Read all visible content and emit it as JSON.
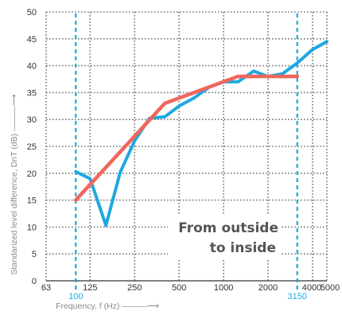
{
  "colors": {
    "series_blue": "#1ea8e0",
    "series_red": "#f0675e",
    "grid": "#777777",
    "marker_lines": "#1ea8e0",
    "marker_labels": "#1ea8e0",
    "annotation_text": "#555555"
  },
  "chart_data": {
    "type": "line",
    "x_scale": "log",
    "xlabel": "Frequency, f (Hz) ———⟶",
    "ylabel": "Standarized level difference, DnT (dB) ———⟶",
    "xlim": [
      63,
      5000
    ],
    "ylim": [
      0,
      50
    ],
    "x_ticks": [
      63,
      125,
      250,
      500,
      1000,
      2000,
      4000,
      5000
    ],
    "x_tick_labels": [
      "63",
      "125",
      "250",
      "500",
      "1000",
      "2000",
      "4000",
      "5000"
    ],
    "y_ticks": [
      0,
      5,
      10,
      15,
      20,
      25,
      30,
      35,
      40,
      45,
      50
    ],
    "y_tick_labels": [
      "0",
      "5",
      "10",
      "15",
      "20",
      "25",
      "30",
      "35",
      "40",
      "45",
      "50"
    ],
    "grid": true,
    "marker_lines": [
      {
        "x": 100,
        "label": "100"
      },
      {
        "x": 3150,
        "label": "3150"
      }
    ],
    "annotation": [
      "From outside",
      "to inside"
    ],
    "series": [
      {
        "color": "#1ea8e0",
        "points": [
          [
            100,
            20.3
          ],
          [
            125,
            19.0
          ],
          [
            160,
            10.3
          ],
          [
            200,
            20.2
          ],
          [
            250,
            26.0
          ],
          [
            315,
            30.2
          ],
          [
            400,
            30.5
          ],
          [
            500,
            32.5
          ],
          [
            630,
            34.0
          ],
          [
            800,
            36.0
          ],
          [
            1000,
            37.0
          ],
          [
            1250,
            37.0
          ],
          [
            1600,
            39.0
          ],
          [
            2000,
            38.0
          ],
          [
            2500,
            38.5
          ],
          [
            3150,
            40.5
          ],
          [
            4000,
            43.0
          ],
          [
            5000,
            44.5
          ]
        ]
      },
      {
        "color": "#f0675e",
        "points": [
          [
            100,
            15.0
          ],
          [
            400,
            33.0
          ],
          [
            1250,
            38.0
          ],
          [
            3150,
            38.0
          ]
        ]
      }
    ]
  }
}
